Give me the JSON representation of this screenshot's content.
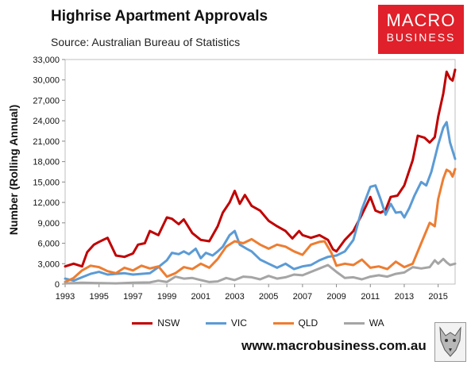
{
  "header": {
    "title": "Highrise Apartment Approvals",
    "subtitle": "Source: Australian Bureau of Statistics"
  },
  "logo": {
    "line1": "MACRO",
    "line2": "BUSINESS",
    "bg_color": "#e0202a",
    "icon": "wolf-logo-icon"
  },
  "footer": {
    "url": "www.macrobusiness.com.au"
  },
  "chart_data": {
    "type": "line",
    "title": "Highrise Apartment Approvals",
    "subtitle": "Source: Australian Bureau of Statistics",
    "xlabel": "",
    "ylabel": "Number (Rolling Annual)",
    "xlim": [
      1993,
      2016
    ],
    "ylim": [
      0,
      33000
    ],
    "xticks": [
      1993,
      1995,
      1997,
      1999,
      2001,
      2003,
      2005,
      2007,
      2009,
      2011,
      2013,
      2015
    ],
    "xtick_labels": [
      "1993",
      "1995",
      "1997",
      "1999",
      "2001",
      "2003",
      "2005",
      "2007",
      "2009",
      "2011",
      "2013",
      "2015"
    ],
    "yticks": [
      0,
      3000,
      6000,
      9000,
      12000,
      15000,
      18000,
      21000,
      24000,
      27000,
      30000,
      33000
    ],
    "ytick_labels": [
      "0",
      "3,000",
      "6,000",
      "9,000",
      "12,000",
      "15,000",
      "18,000",
      "21,000",
      "24,000",
      "27,000",
      "30,000",
      "33,000"
    ],
    "grid": false,
    "legend_position": "bottom",
    "series": [
      {
        "name": "NSW",
        "color": "#c00000",
        "points": [
          [
            1993,
            2600
          ],
          [
            1993.5,
            3000
          ],
          [
            1994,
            2600
          ],
          [
            1994.3,
            4700
          ],
          [
            1994.7,
            5800
          ],
          [
            1995,
            6200
          ],
          [
            1995.5,
            6800
          ],
          [
            1996,
            4200
          ],
          [
            1996.5,
            4000
          ],
          [
            1997,
            4500
          ],
          [
            1997.3,
            5800
          ],
          [
            1997.7,
            6000
          ],
          [
            1998,
            7800
          ],
          [
            1998.5,
            7200
          ],
          [
            1999,
            9800
          ],
          [
            1999.3,
            9600
          ],
          [
            1999.7,
            8800
          ],
          [
            2000,
            9500
          ],
          [
            2000.5,
            7500
          ],
          [
            2001,
            6500
          ],
          [
            2001.5,
            6300
          ],
          [
            2002,
            8500
          ],
          [
            2002.3,
            10500
          ],
          [
            2002.7,
            12000
          ],
          [
            2003,
            13700
          ],
          [
            2003.3,
            11800
          ],
          [
            2003.6,
            13100
          ],
          [
            2004,
            11500
          ],
          [
            2004.5,
            10800
          ],
          [
            2005,
            9300
          ],
          [
            2005.5,
            8500
          ],
          [
            2006,
            7800
          ],
          [
            2006.4,
            6700
          ],
          [
            2006.8,
            7800
          ],
          [
            2007,
            7200
          ],
          [
            2007.5,
            6800
          ],
          [
            2008,
            7200
          ],
          [
            2008.5,
            6500
          ],
          [
            2008.8,
            5100
          ],
          [
            2009,
            4800
          ],
          [
            2009.5,
            6500
          ],
          [
            2010,
            7800
          ],
          [
            2010.5,
            10200
          ],
          [
            2011,
            12800
          ],
          [
            2011.3,
            10800
          ],
          [
            2011.6,
            10500
          ],
          [
            2011.9,
            10900
          ],
          [
            2012.2,
            12800
          ],
          [
            2012.6,
            13000
          ],
          [
            2013,
            14500
          ],
          [
            2013.5,
            18200
          ],
          [
            2013.8,
            21800
          ],
          [
            2014.2,
            21500
          ],
          [
            2014.5,
            20800
          ],
          [
            2014.8,
            21600
          ],
          [
            2015,
            24600
          ],
          [
            2015.3,
            28000
          ],
          [
            2015.5,
            31200
          ],
          [
            2015.7,
            30200
          ],
          [
            2015.85,
            29900
          ],
          [
            2016,
            31500
          ]
        ]
      },
      {
        "name": "VIC",
        "color": "#5b9bd5",
        "points": [
          [
            1993,
            800
          ],
          [
            1993.5,
            500
          ],
          [
            1994,
            1000
          ],
          [
            1994.5,
            1500
          ],
          [
            1995,
            1800
          ],
          [
            1995.5,
            1400
          ],
          [
            1996,
            1500
          ],
          [
            1996.5,
            1600
          ],
          [
            1997,
            1400
          ],
          [
            1997.5,
            1500
          ],
          [
            1998,
            1600
          ],
          [
            1998.5,
            2500
          ],
          [
            1999,
            3500
          ],
          [
            1999.3,
            4600
          ],
          [
            1999.7,
            4400
          ],
          [
            2000,
            4800
          ],
          [
            2000.3,
            4400
          ],
          [
            2000.7,
            5200
          ],
          [
            2001,
            3800
          ],
          [
            2001.3,
            4600
          ],
          [
            2001.7,
            4200
          ],
          [
            2002,
            4800
          ],
          [
            2002.3,
            5500
          ],
          [
            2002.7,
            7200
          ],
          [
            2003,
            7800
          ],
          [
            2003.3,
            5800
          ],
          [
            2003.7,
            5200
          ],
          [
            2004,
            4800
          ],
          [
            2004.5,
            3600
          ],
          [
            2005,
            3000
          ],
          [
            2005.5,
            2400
          ],
          [
            2006,
            3000
          ],
          [
            2006.5,
            2200
          ],
          [
            2007,
            2600
          ],
          [
            2007.5,
            2800
          ],
          [
            2008,
            3500
          ],
          [
            2008.5,
            4000
          ],
          [
            2009,
            4200
          ],
          [
            2009.5,
            4800
          ],
          [
            2010,
            6500
          ],
          [
            2010.5,
            11000
          ],
          [
            2011,
            14300
          ],
          [
            2011.3,
            14500
          ],
          [
            2011.6,
            12500
          ],
          [
            2011.9,
            10200
          ],
          [
            2012.2,
            11800
          ],
          [
            2012.5,
            10500
          ],
          [
            2012.8,
            10600
          ],
          [
            2013,
            9800
          ],
          [
            2013.3,
            11200
          ],
          [
            2013.6,
            13000
          ],
          [
            2014,
            15000
          ],
          [
            2014.3,
            14500
          ],
          [
            2014.6,
            16500
          ],
          [
            2015,
            20500
          ],
          [
            2015.3,
            23000
          ],
          [
            2015.5,
            23800
          ],
          [
            2015.7,
            20800
          ],
          [
            2016,
            18400
          ]
        ]
      },
      {
        "name": "QLD",
        "color": "#ed7d31",
        "points": [
          [
            1993,
            300
          ],
          [
            1993.5,
            900
          ],
          [
            1994,
            2000
          ],
          [
            1994.5,
            2700
          ],
          [
            1995,
            2500
          ],
          [
            1995.5,
            1900
          ],
          [
            1996,
            1600
          ],
          [
            1996.5,
            2400
          ],
          [
            1997,
            2000
          ],
          [
            1997.5,
            2700
          ],
          [
            1998,
            2300
          ],
          [
            1998.5,
            2600
          ],
          [
            1999,
            1100
          ],
          [
            1999.5,
            1600
          ],
          [
            2000,
            2500
          ],
          [
            2000.5,
            2200
          ],
          [
            2001,
            3000
          ],
          [
            2001.5,
            2400
          ],
          [
            2002,
            3700
          ],
          [
            2002.5,
            5500
          ],
          [
            2003,
            6300
          ],
          [
            2003.5,
            6000
          ],
          [
            2004,
            6600
          ],
          [
            2004.5,
            5800
          ],
          [
            2005,
            5200
          ],
          [
            2005.5,
            5800
          ],
          [
            2006,
            5500
          ],
          [
            2006.5,
            4800
          ],
          [
            2007,
            4300
          ],
          [
            2007.5,
            5800
          ],
          [
            2008,
            6200
          ],
          [
            2008.3,
            6300
          ],
          [
            2008.7,
            4600
          ],
          [
            2009,
            2700
          ],
          [
            2009.5,
            3000
          ],
          [
            2010,
            2800
          ],
          [
            2010.5,
            3600
          ],
          [
            2011,
            2400
          ],
          [
            2011.5,
            2600
          ],
          [
            2012,
            2200
          ],
          [
            2012.5,
            3300
          ],
          [
            2013,
            2500
          ],
          [
            2013.5,
            3000
          ],
          [
            2014,
            6000
          ],
          [
            2014.5,
            9000
          ],
          [
            2014.8,
            8500
          ],
          [
            2015,
            12500
          ],
          [
            2015.3,
            15500
          ],
          [
            2015.5,
            16800
          ],
          [
            2015.7,
            16500
          ],
          [
            2015.85,
            15800
          ],
          [
            2016,
            16900
          ]
        ]
      },
      {
        "name": "WA",
        "color": "#a5a5a5",
        "points": [
          [
            1993,
            100
          ],
          [
            1994,
            200
          ],
          [
            1995,
            150
          ],
          [
            1996,
            100
          ],
          [
            1997,
            200
          ],
          [
            1998,
            250
          ],
          [
            1998.5,
            500
          ],
          [
            1999,
            300
          ],
          [
            1999.5,
            1100
          ],
          [
            2000,
            800
          ],
          [
            2000.5,
            900
          ],
          [
            2001,
            600
          ],
          [
            2001.5,
            300
          ],
          [
            2002,
            400
          ],
          [
            2002.5,
            900
          ],
          [
            2003,
            600
          ],
          [
            2003.5,
            1100
          ],
          [
            2004,
            1000
          ],
          [
            2004.5,
            700
          ],
          [
            2005,
            1200
          ],
          [
            2005.5,
            800
          ],
          [
            2006,
            1000
          ],
          [
            2006.5,
            1400
          ],
          [
            2007,
            1300
          ],
          [
            2007.5,
            1800
          ],
          [
            2008,
            2300
          ],
          [
            2008.5,
            2800
          ],
          [
            2009,
            1800
          ],
          [
            2009.5,
            900
          ],
          [
            2010,
            1000
          ],
          [
            2010.5,
            700
          ],
          [
            2011,
            1100
          ],
          [
            2011.5,
            1300
          ],
          [
            2012,
            1100
          ],
          [
            2012.5,
            1500
          ],
          [
            2013,
            1700
          ],
          [
            2013.5,
            2500
          ],
          [
            2014,
            2300
          ],
          [
            2014.5,
            2500
          ],
          [
            2014.8,
            3500
          ],
          [
            2015,
            3000
          ],
          [
            2015.3,
            3700
          ],
          [
            2015.5,
            3200
          ],
          [
            2015.7,
            2800
          ],
          [
            2016,
            3000
          ]
        ]
      }
    ]
  }
}
